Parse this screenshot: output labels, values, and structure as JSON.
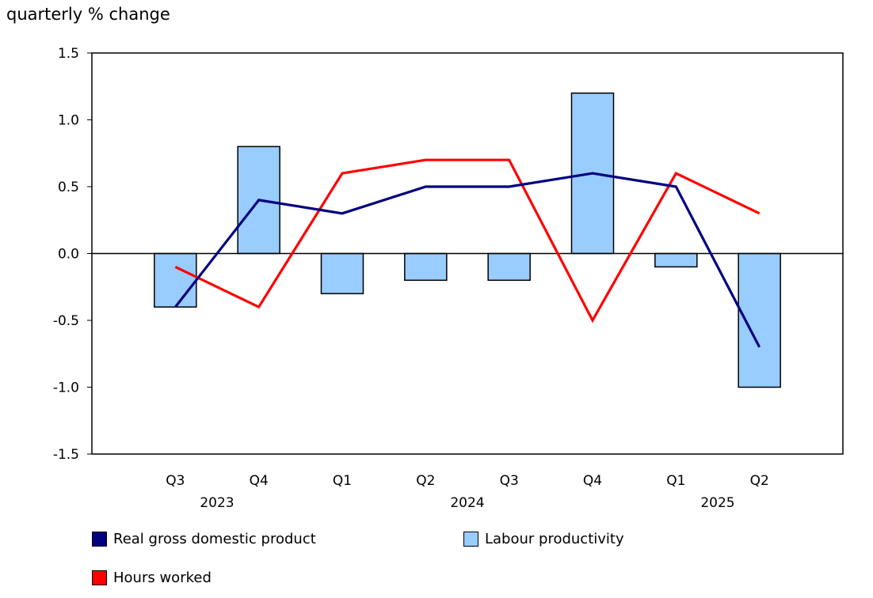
{
  "chart_data": {
    "type": "bar+line",
    "ylabel": "quarterly % change",
    "ylim": [
      -1.5,
      1.5
    ],
    "yticks": [
      "1.5",
      "1.0",
      "0.5",
      "0.0",
      "-0.5",
      "-1.0",
      "-1.5"
    ],
    "ytick_values": [
      1.5,
      1.0,
      0.5,
      0.0,
      -0.5,
      -1.0,
      -1.5
    ],
    "categories": [
      "Q3",
      "Q4",
      "Q1",
      "Q2",
      "Q3",
      "Q4",
      "Q1",
      "Q2"
    ],
    "year_labels": [
      {
        "label": "2023",
        "between": [
          0,
          1
        ]
      },
      {
        "label": "2024",
        "between": [
          3,
          4
        ]
      },
      {
        "label": "2025",
        "between": [
          6,
          7
        ]
      }
    ],
    "grid": false,
    "legend_position": "bottom",
    "series": [
      {
        "name": "Real gross domestic product",
        "type": "line",
        "color": "#000080",
        "values": [
          -0.4,
          0.4,
          0.3,
          0.5,
          0.5,
          0.6,
          0.5,
          -0.7
        ]
      },
      {
        "name": "Labour productivity",
        "type": "bar",
        "color": "#99ccff",
        "values": [
          -0.4,
          0.8,
          -0.3,
          -0.2,
          -0.2,
          1.2,
          -0.1,
          -1.0
        ]
      },
      {
        "name": "Hours worked",
        "type": "line",
        "color": "#ff0000",
        "values": [
          -0.1,
          -0.4,
          0.6,
          0.7,
          0.7,
          -0.5,
          0.6,
          0.3
        ]
      }
    ]
  }
}
